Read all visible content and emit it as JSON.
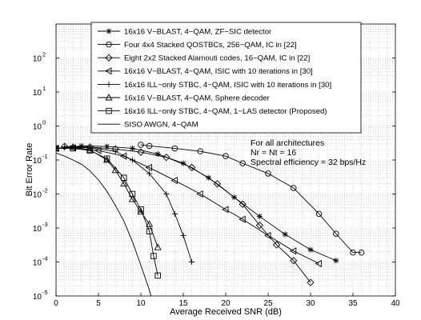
{
  "chart_data": {
    "type": "line",
    "title": "",
    "xlabel": "Average Received SNR (dB)",
    "ylabel": "Bit Error Rate",
    "xlim": [
      0,
      40
    ],
    "ylim": [
      1e-05,
      1000.0
    ],
    "yscale": "log",
    "grid": true,
    "legend_position": "top-right",
    "x_ticks": [
      "0",
      "5",
      "10",
      "15",
      "20",
      "25",
      "30",
      "35",
      "40"
    ],
    "y_tick_labels": [
      {
        "base": "10",
        "exp": "-5",
        "value": 1e-05
      },
      {
        "base": "10",
        "exp": "-4",
        "value": 0.0001
      },
      {
        "base": "10",
        "exp": "-3",
        "value": 0.001
      },
      {
        "base": "10",
        "exp": "-2",
        "value": 0.01
      },
      {
        "base": "10",
        "exp": "-1",
        "value": 0.1
      },
      {
        "base": "10",
        "exp": "0",
        "value": 1
      },
      {
        "base": "10",
        "exp": "1",
        "value": 10
      },
      {
        "base": "10",
        "exp": "2",
        "value": 100
      }
    ],
    "annotations": [
      "For all architectures",
      "Nr = Nt = 16",
      "Spectral efficiency = 32 bps/Hz"
    ],
    "series": [
      {
        "name": "16x16 V−BLAST, 4−QAM, ZF−SIC detector",
        "marker": "star",
        "x": [
          0,
          3,
          6,
          9,
          12,
          15,
          18,
          21,
          24,
          27,
          30,
          33
        ],
        "y": [
          0.22,
          0.26,
          0.25,
          0.22,
          0.15,
          0.08,
          0.03,
          0.008,
          0.0022,
          0.00065,
          0.00023,
          0.00011
        ]
      },
      {
        "name": "Four 4x4 Stacked QOSTBCs, 256−QAM, IC in [22]",
        "marker": "circle",
        "x": [
          10,
          11,
          14,
          17,
          20,
          22,
          25,
          28,
          31,
          33,
          35,
          36
        ],
        "y": [
          0.28,
          0.26,
          0.22,
          0.18,
          0.13,
          0.08,
          0.04,
          0.015,
          0.0026,
          0.00068,
          0.00019,
          0.00019
        ]
      },
      {
        "name": "Eight 2x2 Stacked Alamouti codes, 16−QAM, IC in [22]",
        "marker": "diamond",
        "x": [
          1,
          4,
          7,
          10,
          13,
          16,
          19,
          22,
          24,
          26,
          28,
          30
        ],
        "y": [
          0.25,
          0.24,
          0.21,
          0.17,
          0.12,
          0.06,
          0.02,
          0.005,
          0.0012,
          0.00032,
          0.00011,
          2.5e-05
        ]
      },
      {
        "name": "16x16 V−BLAST, 4−QAM, ISIC with 10 iterations in [30]",
        "marker": "triangle-left",
        "x": [
          0,
          2,
          5,
          8,
          11,
          14,
          17,
          20,
          22,
          25,
          28,
          31
        ],
        "y": [
          0.22,
          0.23,
          0.19,
          0.13,
          0.06,
          0.025,
          0.01,
          0.0035,
          0.0018,
          0.0006,
          0.00021,
          9e-05
        ]
      },
      {
        "name": "16x16 ILL−only STBC, 4−QAM, ISIC with 10 iterations in [30]",
        "marker": "plus",
        "x": [
          1,
          4,
          7,
          9,
          11,
          13,
          14,
          15,
          16
        ],
        "y": [
          0.24,
          0.23,
          0.18,
          0.1,
          0.04,
          0.01,
          0.0026,
          0.0006,
          0.0001
        ]
      },
      {
        "name": "16x16 V−BLAST, 4−QAM, Sphere decoder",
        "marker": "triangle-up",
        "x": [
          0,
          2,
          4,
          6,
          7,
          8,
          9,
          10,
          11,
          12
        ],
        "y": [
          0.22,
          0.24,
          0.2,
          0.1,
          0.05,
          0.02,
          0.007,
          0.003,
          0.0013,
          0.00027
        ]
      },
      {
        "name": "16x16 ILL−only STBC, 4−QAM, 1−LAS detector (Proposed)",
        "marker": "square",
        "x": [
          0,
          2,
          4,
          6,
          8,
          9,
          10,
          11,
          11.5,
          12
        ],
        "y": [
          0.22,
          0.22,
          0.19,
          0.11,
          0.03,
          0.01,
          0.0035,
          0.0008,
          0.00015,
          4e-05
        ]
      },
      {
        "name": "SISO AWGN, 4−QAM",
        "marker": "none",
        "x": [
          0,
          1,
          2,
          3,
          4,
          5,
          6,
          7,
          8,
          9,
          10,
          11,
          12
        ],
        "y": [
          0.16,
          0.13,
          0.1,
          0.075,
          0.048,
          0.026,
          0.012,
          0.0046,
          0.0016,
          0.0004,
          8e-05,
          1.5e-05,
          2e-06
        ]
      }
    ]
  }
}
